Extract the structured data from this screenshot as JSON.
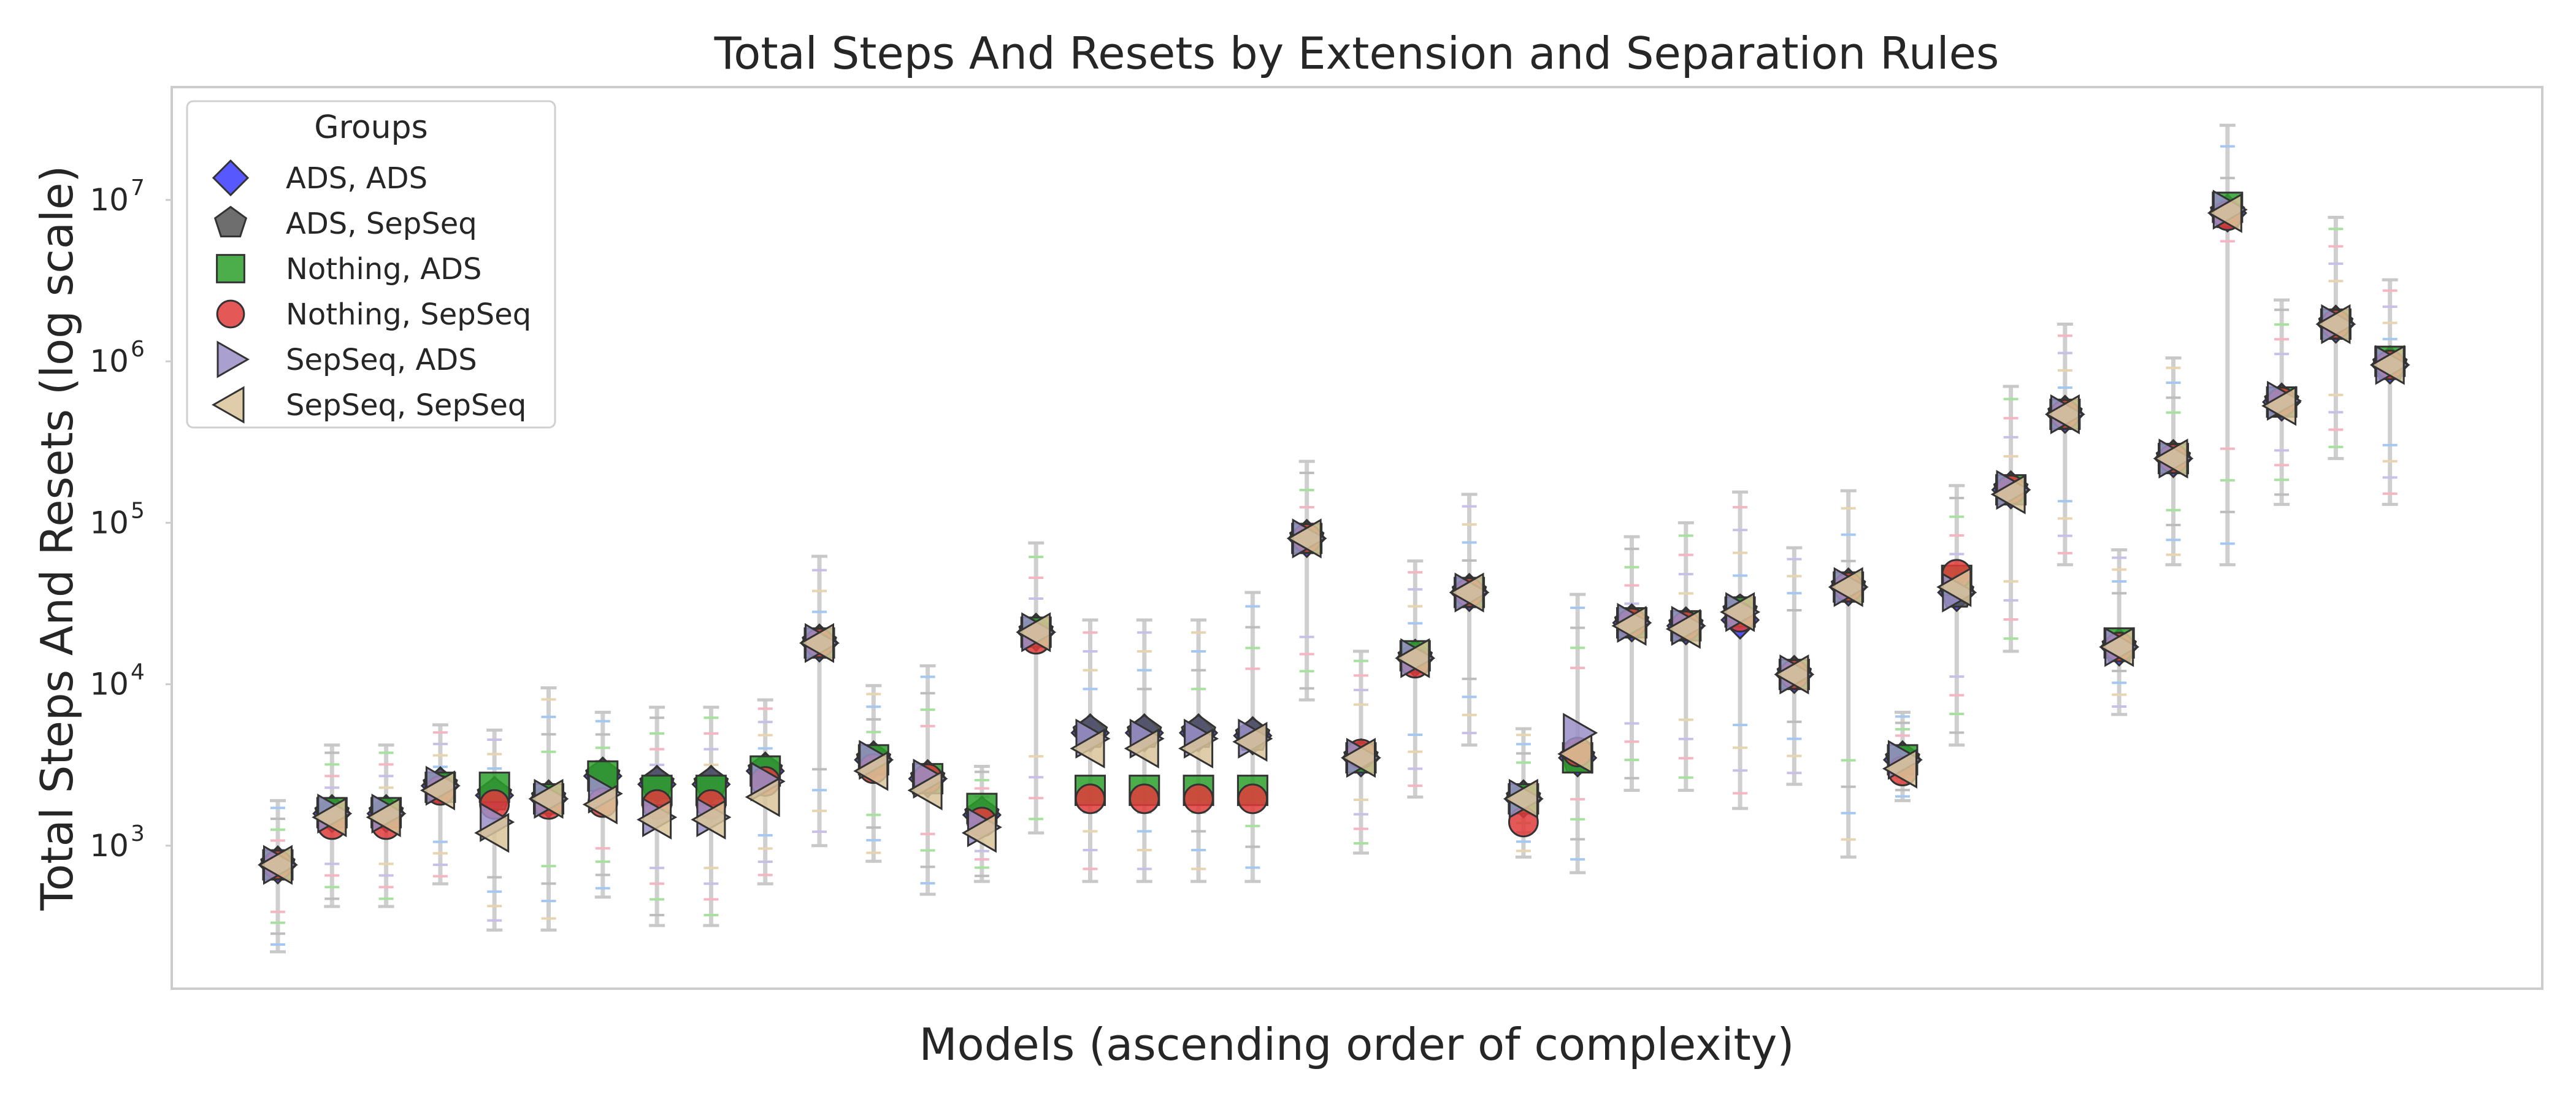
{
  "chart_data": {
    "type": "scatter",
    "title": "Total Steps And Resets by Extension and Separation Rules",
    "xlabel": "Models (ascending order of complexity)",
    "ylabel": "Total Steps And Resets (log scale)",
    "yscale": "log",
    "ylim": [
      130,
      50000000
    ],
    "grid": false,
    "legend_title": "Groups",
    "legend_position": "top-left",
    "y_ticks": [
      {
        "value": 1000,
        "label": "10",
        "exp": "3"
      },
      {
        "value": 10000,
        "label": "10",
        "exp": "4"
      },
      {
        "value": 100000,
        "label": "10",
        "exp": "5"
      },
      {
        "value": 1000000,
        "label": "10",
        "exp": "6"
      },
      {
        "value": 10000000,
        "label": "10",
        "exp": "7"
      }
    ],
    "series": [
      {
        "name": "ADS, ADS",
        "marker": "diamond",
        "color": "#3b3bff",
        "values": [
          760,
          1580,
          1580,
          2350,
          2050,
          1950,
          2700,
          2400,
          2400,
          2900,
          18000,
          3400,
          2600,
          1550,
          21000,
          5000,
          5000,
          5000,
          4800,
          80000,
          3500,
          14500,
          37000,
          1950,
          3500,
          24000,
          23000,
          25000,
          11500,
          40000,
          3400,
          37000,
          160000,
          470000,
          17000,
          250000,
          8300000,
          560000,
          1700000,
          950000
        ]
      },
      {
        "name": "ADS, SepSeq",
        "marker": "pentagon",
        "color": "#555555",
        "values": [
          760,
          1580,
          1580,
          2350,
          2050,
          1950,
          2700,
          2400,
          2400,
          2900,
          18000,
          3400,
          2600,
          1550,
          21000,
          5000,
          5000,
          5000,
          4800,
          80000,
          3500,
          14500,
          37000,
          1950,
          3500,
          24000,
          23000,
          28000,
          11500,
          40000,
          3400,
          37000,
          160000,
          470000,
          17000,
          250000,
          8300000,
          560000,
          1700000,
          950000
        ]
      },
      {
        "name": "Nothing, ADS",
        "marker": "square",
        "color": "#2ca02c",
        "values": [
          760,
          1600,
          1600,
          2300,
          2300,
          1950,
          2700,
          2200,
          2200,
          2900,
          18000,
          3400,
          2600,
          1700,
          21000,
          2200,
          2200,
          2200,
          2200,
          80000,
          3500,
          15000,
          37000,
          1950,
          3500,
          24000,
          23000,
          28000,
          11500,
          40000,
          3400,
          44000,
          160000,
          470000,
          18000,
          250000,
          9000000,
          560000,
          1700000,
          1000000
        ]
      },
      {
        "name": "Nothing, SepSeq",
        "marker": "circle",
        "color": "#e03b3b",
        "values": [
          760,
          1350,
          1350,
          2200,
          1800,
          1800,
          1850,
          1800,
          1800,
          2500,
          18000,
          3000,
          2600,
          1400,
          19000,
          1950,
          1950,
          1950,
          1950,
          80000,
          3700,
          13500,
          37000,
          1400,
          3800,
          24000,
          23000,
          26000,
          11500,
          40000,
          2900,
          48000,
          160000,
          470000,
          17000,
          250000,
          8000000,
          560000,
          1700000,
          950000
        ]
      },
      {
        "name": "SepSeq, ADS",
        "marker": "triangle-right",
        "color": "#9a8fc8",
        "values": [
          760,
          1580,
          1580,
          2350,
          1400,
          1950,
          2100,
          1500,
          1500,
          2500,
          18000,
          3400,
          2600,
          1300,
          21000,
          4600,
          4600,
          4600,
          4600,
          80000,
          3500,
          14500,
          37000,
          1950,
          5000,
          24000,
          23000,
          28000,
          11500,
          40000,
          3400,
          37000,
          160000,
          470000,
          17000,
          250000,
          8700000,
          570000,
          1700000,
          950000
        ]
      },
      {
        "name": "SepSeq, SepSeq",
        "marker": "triangle-left",
        "color": "#d9c49a",
        "values": [
          760,
          1500,
          1500,
          2200,
          1200,
          1950,
          1800,
          1450,
          1450,
          2000,
          18000,
          2900,
          2200,
          1200,
          21000,
          4000,
          4000,
          4000,
          4400,
          80000,
          3500,
          14500,
          37000,
          1950,
          3700,
          23000,
          22000,
          28000,
          11500,
          40000,
          3000,
          40000,
          150000,
          470000,
          17000,
          250000,
          8300000,
          530000,
          1700000,
          950000
        ]
      }
    ],
    "error_ranges": [
      [
        220,
        1900
      ],
      [
        420,
        4200
      ],
      [
        420,
        4200
      ],
      [
        580,
        5600
      ],
      [
        300,
        5200
      ],
      [
        300,
        9500
      ],
      [
        480,
        6700
      ],
      [
        320,
        7200
      ],
      [
        320,
        7200
      ],
      [
        580,
        8000
      ],
      [
        1000,
        62000
      ],
      [
        800,
        9800
      ],
      [
        500,
        13000
      ],
      [
        600,
        3100
      ],
      [
        1200,
        75000
      ],
      [
        600,
        25000
      ],
      [
        600,
        25000
      ],
      [
        600,
        25000
      ],
      [
        600,
        37000
      ],
      [
        8000,
        240000
      ],
      [
        900,
        16000
      ],
      [
        2000,
        58000
      ],
      [
        4200,
        150000
      ],
      [
        850,
        5300
      ],
      [
        680,
        36000
      ],
      [
        2200,
        82000
      ],
      [
        2200,
        100000
      ],
      [
        1700,
        155000
      ],
      [
        2400,
        70000
      ],
      [
        850,
        158000
      ],
      [
        1900,
        6700
      ],
      [
        4200,
        170000
      ],
      [
        16000,
        700000
      ],
      [
        55000,
        1700000
      ],
      [
        6500,
        68000
      ],
      [
        55000,
        1050000
      ],
      [
        55000,
        29000000
      ],
      [
        130000,
        2400000
      ],
      [
        250000,
        7800000
      ],
      [
        130000,
        3200000
      ]
    ]
  }
}
